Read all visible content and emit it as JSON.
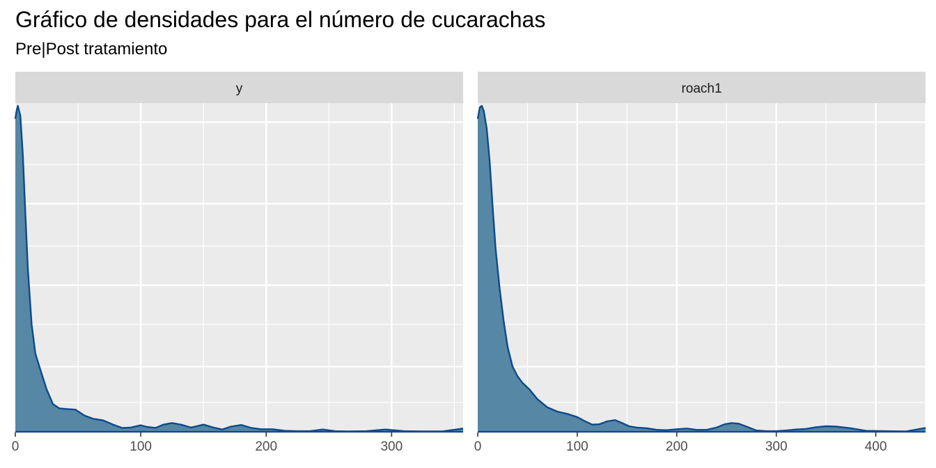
{
  "chart_data": {
    "type": "area",
    "title": "Gráfico de densidades para el número de cucarachas",
    "subtitle": "Pre|Post tratamiento",
    "xlabel": "",
    "ylabel": "",
    "y_ticks_shown": false,
    "grid": true,
    "legend": "none",
    "fill_color": "#5687A5",
    "line_color": "#0D4A8A",
    "panels": [
      {
        "strip": "y",
        "xlim": [
          0,
          357
        ],
        "x_ticks": [
          0,
          100,
          200,
          300
        ],
        "x_minor": [
          50,
          150,
          250,
          350
        ],
        "ylim": [
          0,
          1
        ],
        "y_grid_major": [
          0.2,
          0.45,
          0.7,
          0.95
        ],
        "y_grid_minor": [
          0.09,
          0.33,
          0.57,
          0.82
        ],
        "x": [
          0,
          1,
          2,
          4,
          6,
          8,
          10,
          13,
          16,
          20,
          25,
          30,
          35,
          40,
          48,
          55,
          62,
          70,
          78,
          85,
          92,
          100,
          105,
          112,
          118,
          125,
          132,
          140,
          150,
          158,
          165,
          172,
          180,
          188,
          196,
          205,
          215,
          225,
          235,
          245,
          255,
          265,
          280,
          295,
          310,
          325,
          340,
          357
        ],
        "values": [
          0.96,
          0.985,
          1.0,
          0.97,
          0.85,
          0.67,
          0.5,
          0.33,
          0.24,
          0.19,
          0.13,
          0.085,
          0.072,
          0.07,
          0.068,
          0.05,
          0.04,
          0.035,
          0.022,
          0.012,
          0.013,
          0.02,
          0.015,
          0.012,
          0.022,
          0.027,
          0.022,
          0.013,
          0.022,
          0.013,
          0.007,
          0.016,
          0.021,
          0.012,
          0.008,
          0.008,
          0.003,
          0.002,
          0.002,
          0.007,
          0.002,
          0.001,
          0.002,
          0.007,
          0.002,
          0.001,
          0.001,
          0.01
        ]
      },
      {
        "strip": "roach1",
        "xlim": [
          0,
          450
        ],
        "x_ticks": [
          0,
          100,
          200,
          300,
          400
        ],
        "x_minor": [
          50,
          150,
          250,
          350,
          450
        ],
        "ylim": [
          0,
          1
        ],
        "y_grid_major": [
          0.2,
          0.45,
          0.7,
          0.95
        ],
        "y_grid_minor": [
          0.09,
          0.33,
          0.57,
          0.82
        ],
        "x": [
          0,
          2,
          4,
          6,
          9,
          12,
          15,
          18,
          22,
          26,
          30,
          35,
          40,
          45,
          52,
          60,
          70,
          80,
          90,
          100,
          108,
          115,
          122,
          130,
          138,
          145,
          152,
          160,
          170,
          180,
          190,
          200,
          210,
          220,
          230,
          240,
          248,
          255,
          262,
          270,
          280,
          290,
          300,
          310,
          320,
          330,
          340,
          350,
          360,
          375,
          390,
          410,
          430,
          450
        ],
        "values": [
          0.96,
          0.995,
          1.0,
          0.985,
          0.93,
          0.83,
          0.69,
          0.56,
          0.44,
          0.34,
          0.26,
          0.2,
          0.17,
          0.15,
          0.13,
          0.1,
          0.075,
          0.062,
          0.055,
          0.045,
          0.032,
          0.022,
          0.023,
          0.032,
          0.036,
          0.027,
          0.017,
          0.013,
          0.011,
          0.006,
          0.005,
          0.008,
          0.01,
          0.006,
          0.006,
          0.013,
          0.023,
          0.027,
          0.025,
          0.016,
          0.004,
          0.002,
          0.002,
          0.004,
          0.007,
          0.009,
          0.014,
          0.017,
          0.016,
          0.011,
          0.003,
          0.002,
          0.001,
          0.012
        ]
      }
    ]
  }
}
